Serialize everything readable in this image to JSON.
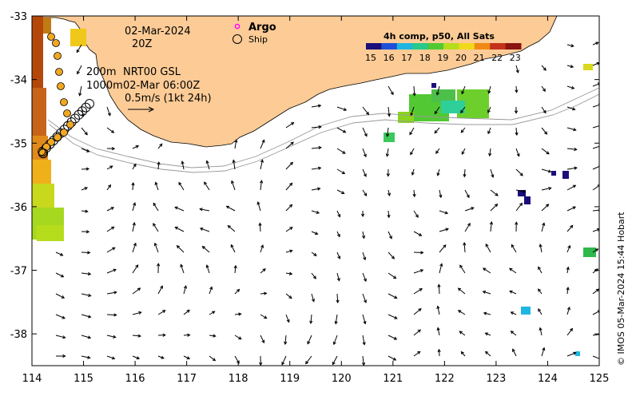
{
  "map": {
    "date": "02-Mar-2024",
    "time": "20Z",
    "legend_argo": "Argo",
    "legend_ship": "Ship",
    "depth_200": "200m",
    "depth_1000": "1000m",
    "product": "NRT00 GSL",
    "product_time": "02-Mar 06:00Z",
    "scale_label": "0.5m/s (1kt 24h)",
    "colorbar_title": "4h comp, p50, All Sats",
    "colorbar_ticks": [
      "15",
      "16",
      "17",
      "18",
      "19",
      "20",
      "21",
      "22",
      "23"
    ],
    "credit": "© IMOS 05-Mar-2024 15:44 Hobart",
    "x_ticks": [
      "114",
      "115",
      "116",
      "117",
      "118",
      "119",
      "120",
      "121",
      "122",
      "123",
      "124",
      "125"
    ],
    "y_ticks": [
      "-33",
      "-34",
      "-35",
      "-36",
      "-37",
      "-38"
    ],
    "lon_range": [
      114,
      125
    ],
    "lat_range": [
      -38.5,
      -33
    ],
    "land_color": "#fccb96",
    "argo_color": "#ff00ff",
    "colorbar_colors": [
      "#1a0f7a",
      "#1f4fd8",
      "#1fb7e0",
      "#29c98a",
      "#52c832",
      "#b6dd1c",
      "#f0d81a",
      "#f08a14",
      "#c4321a",
      "#8a1410"
    ]
  }
}
